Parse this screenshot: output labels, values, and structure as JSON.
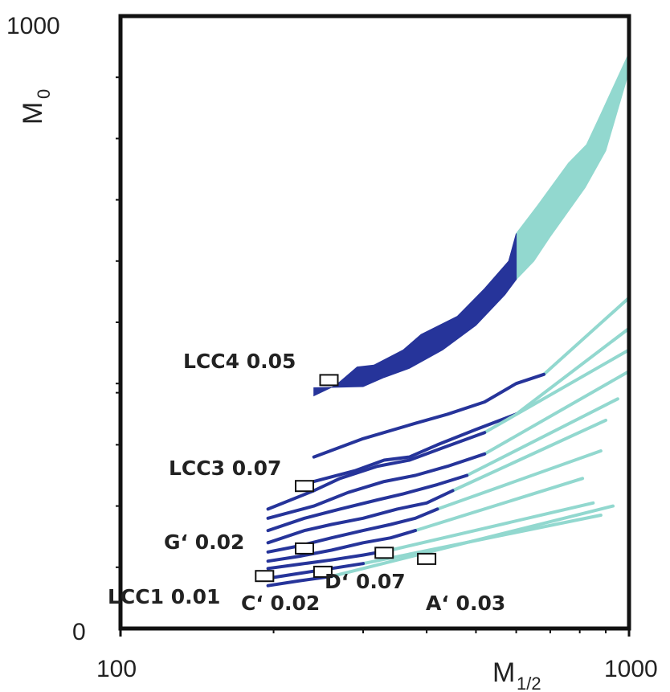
{
  "chart_data": {
    "type": "area",
    "xlabel": "M",
    "xlabel_sub": "1/2",
    "ylabel": "M",
    "ylabel_sub": "0",
    "xlim": [
      100,
      1000
    ],
    "ylim": [
      0,
      1000
    ],
    "x_scale": "log",
    "grid": false,
    "x_tick_labels": [
      {
        "value": 100,
        "label": "100"
      },
      {
        "value": 1000,
        "label": "1000"
      }
    ],
    "y_tick_labels": [
      {
        "value": 0,
        "label": "0"
      },
      {
        "value": 1000,
        "label": "1000"
      }
    ],
    "colors": {
      "dark": "#26349a",
      "light": "#92d8cf",
      "axis": "#111111"
    },
    "bands": [
      {
        "dark_upper": [
          [
            240,
            380
          ],
          [
            265,
            397
          ],
          [
            292,
            427
          ],
          [
            315,
            430
          ],
          [
            360,
            455
          ],
          [
            390,
            480
          ],
          [
            460,
            510
          ],
          [
            520,
            555
          ],
          [
            580,
            600
          ],
          [
            600,
            645
          ]
        ],
        "dark_lower": [
          [
            600,
            570
          ],
          [
            570,
            545
          ],
          [
            500,
            495
          ],
          [
            430,
            455
          ],
          [
            370,
            425
          ],
          [
            330,
            410
          ],
          [
            300,
            395
          ],
          [
            240,
            393
          ]
        ],
        "light_upper": [
          [
            600,
            645
          ],
          [
            660,
            690
          ],
          [
            760,
            760
          ],
          [
            825,
            790
          ],
          [
            880,
            840
          ],
          [
            1000,
            940
          ]
        ],
        "light_lower": [
          [
            1000,
            910
          ],
          [
            900,
            780
          ],
          [
            820,
            720
          ],
          [
            700,
            640
          ],
          [
            650,
            600
          ],
          [
            600,
            570
          ]
        ]
      }
    ],
    "lines": [
      {
        "x": [
          240,
          300,
          380,
          440,
          520,
          600,
          680
        ],
        "y": [
          280,
          310,
          335,
          350,
          370,
          400,
          415
        ],
        "split_x": 680,
        "end_x": 1000,
        "end_y": 540
      },
      {
        "x": [
          240,
          290,
          330,
          370,
          420,
          500,
          600
        ],
        "y": [
          240,
          258,
          275,
          280,
          300,
          325,
          350
        ],
        "split_x": 650,
        "end_x": 1000,
        "end_y": 490
      },
      {
        "x": [
          195,
          240,
          270,
          320,
          370,
          430,
          520
        ],
        "y": [
          195,
          225,
          245,
          265,
          275,
          295,
          320
        ],
        "split_x": 520,
        "end_x": 1000,
        "end_y": 455
      },
      {
        "x": [
          195,
          240,
          280,
          330,
          380,
          440,
          520
        ],
        "y": [
          180,
          200,
          222,
          240,
          250,
          265,
          285
        ],
        "split_x": 520,
        "end_x": 1000,
        "end_y": 420
      },
      {
        "x": [
          195,
          230,
          270,
          320,
          360,
          420,
          480
        ],
        "y": [
          160,
          180,
          195,
          210,
          220,
          235,
          250
        ],
        "split_x": 480,
        "end_x": 950,
        "end_y": 375
      },
      {
        "x": [
          195,
          230,
          260,
          300,
          350,
          400,
          450
        ],
        "y": [
          140,
          160,
          170,
          180,
          195,
          205,
          225
        ],
        "split_x": 450,
        "end_x": 900,
        "end_y": 340
      },
      {
        "x": [
          195,
          225,
          260,
          300,
          340,
          380,
          420
        ],
        "y": [
          125,
          135,
          148,
          160,
          170,
          180,
          195
        ],
        "split_x": 420,
        "end_x": 880,
        "end_y": 290
      },
      {
        "x": [
          195,
          225,
          260,
          300,
          340,
          380
        ],
        "y": [
          110,
          118,
          128,
          140,
          148,
          160
        ],
        "split_x": 380,
        "end_x": 810,
        "end_y": 245
      },
      {
        "x": [
          195,
          225,
          260,
          300,
          340
        ],
        "y": [
          98,
          105,
          112,
          120,
          128
        ],
        "split_x": 340,
        "end_x": 850,
        "end_y": 205
      },
      {
        "x": [
          195,
          225,
          260,
          300
        ],
        "y": [
          82,
          90,
          98,
          106
        ],
        "split_x": 300,
        "end_x": 880,
        "end_y": 185
      },
      {
        "x": [
          195,
          225,
          260
        ],
        "y": [
          70,
          78,
          85
        ],
        "split_x": 260,
        "end_x": 930,
        "end_y": 200
      }
    ],
    "points": [
      {
        "name": "LCC4",
        "value": "0.05",
        "x": 257,
        "y": 405
      },
      {
        "name": "LCC3",
        "value": "0.07",
        "x": 230,
        "y": 232
      },
      {
        "name": "G‘",
        "value": "0.02",
        "x": 230,
        "y": 130
      },
      {
        "name": "LCC1",
        "value": "0.01",
        "x": 192,
        "y": 85
      },
      {
        "name": "C‘",
        "value": "0.02",
        "x": 250,
        "y": 92
      },
      {
        "name": "D‘",
        "value": "0.07",
        "x": 330,
        "y": 123
      },
      {
        "name": "A‘",
        "value": "0.03",
        "x": 400,
        "y": 113
      }
    ],
    "annotations": [
      {
        "text": "LCC4  0.05",
        "point": 0
      },
      {
        "text": "LCC3 0.07",
        "point": 1
      },
      {
        "text": "G‘ 0.02",
        "point": 2
      },
      {
        "text": "LCC1 0.01",
        "point": 3
      },
      {
        "text": "C‘ 0.02",
        "point": 4
      },
      {
        "text": "D‘ 0.07",
        "point": 5
      },
      {
        "text": "A‘ 0.03",
        "point": 6
      }
    ]
  }
}
